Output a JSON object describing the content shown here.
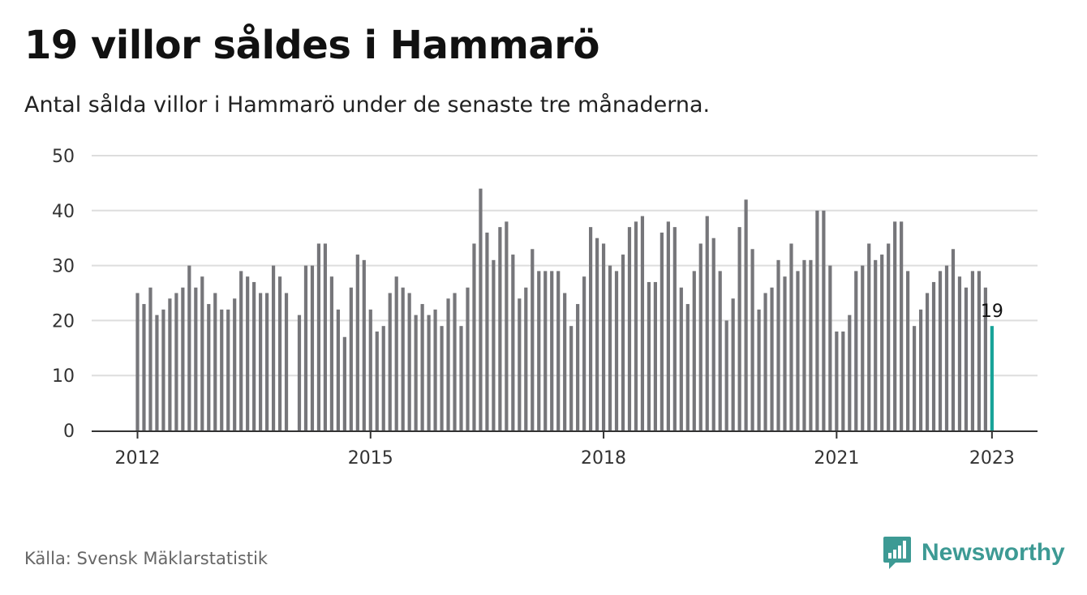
{
  "header": {
    "title": "19 villor såldes i Hammarö",
    "subtitle": "Antal sålda villor i Hammarö under de senaste tre månaderna."
  },
  "footer": {
    "source": "Källa: Svensk Mäklarstatistik",
    "brand": "Newsworthy"
  },
  "colors": {
    "bar": "#76767a",
    "highlight": "#17a398",
    "grid": "#dddddd",
    "axis": "#333333",
    "brand": "#3d9a94"
  },
  "chart_data": {
    "type": "bar",
    "title": "19 villor såldes i Hammarö",
    "subtitle": "Antal sålda villor i Hammarö under de senaste tre månaderna.",
    "xlabel": "",
    "ylabel": "",
    "ylim": [
      0,
      50
    ],
    "yticks": [
      0,
      10,
      20,
      30,
      40,
      50
    ],
    "xticks": [
      "2012",
      "2015",
      "2018",
      "2021",
      "2023"
    ],
    "grid": true,
    "frequency": "monthly, rolling three-month total",
    "first_month": "2012-01",
    "last_month": "2023-01",
    "highlight_value_label": "19",
    "values": [
      25,
      23,
      26,
      21,
      22,
      24,
      25,
      26,
      30,
      26,
      28,
      23,
      25,
      22,
      22,
      24,
      29,
      28,
      27,
      25,
      25,
      30,
      28,
      25,
      null,
      21,
      30,
      30,
      34,
      34,
      28,
      22,
      17,
      26,
      32,
      31,
      22,
      18,
      19,
      25,
      28,
      26,
      25,
      21,
      23,
      21,
      22,
      19,
      24,
      25,
      19,
      26,
      34,
      44,
      36,
      31,
      37,
      38,
      32,
      24,
      26,
      33,
      29,
      29,
      29,
      29,
      25,
      19,
      23,
      28,
      37,
      35,
      34,
      30,
      29,
      32,
      37,
      38,
      39,
      27,
      27,
      36,
      38,
      37,
      26,
      23,
      29,
      34,
      39,
      35,
      29,
      20,
      24,
      37,
      42,
      33,
      22,
      25,
      26,
      31,
      28,
      34,
      29,
      31,
      31,
      40,
      40,
      30,
      18,
      18,
      21,
      29,
      30,
      34,
      31,
      32,
      34,
      38,
      38,
      29,
      19,
      22,
      25,
      27,
      29,
      30,
      33,
      28,
      26,
      29,
      29,
      26,
      19
    ]
  }
}
